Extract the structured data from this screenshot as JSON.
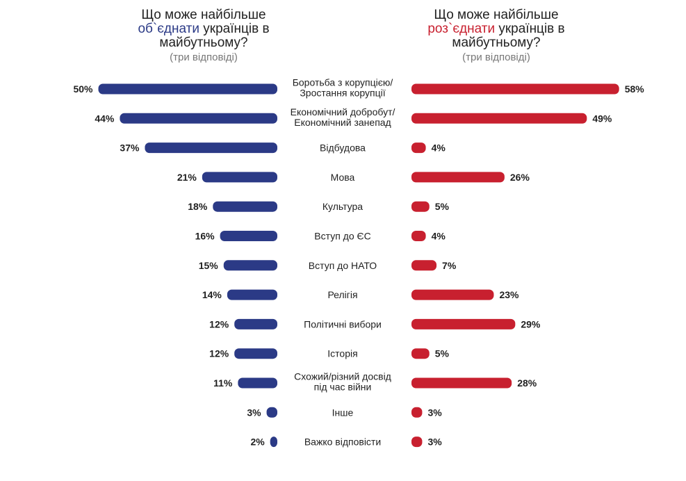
{
  "left_panel": {
    "title_pre": "Що може найбільше",
    "title_highlight": "об`єднати",
    "title_post": "українців в майбутньому?",
    "subtitle": "(три відповіді)"
  },
  "right_panel": {
    "title_pre": "Що може найбільше",
    "title_highlight": "роз`єднати",
    "title_post": "українців в майбутньому?",
    "subtitle": "(три відповіді)"
  },
  "colors": {
    "unite": "#2b3a86",
    "divide": "#c8202f"
  },
  "chart_data": {
    "type": "bar",
    "orientation": "horizontal-butterfly",
    "categories": [
      [
        "Боротьба з корупцією/",
        "Зростання корупції"
      ],
      [
        "Економічний добробут/",
        "Економічний занепад"
      ],
      [
        "Відбудова"
      ],
      [
        "Мова"
      ],
      [
        "Культура"
      ],
      [
        "Вступ до ЄС"
      ],
      [
        "Вступ до НАТО"
      ],
      [
        "Релігія"
      ],
      [
        "Політичні вибори"
      ],
      [
        "Історія"
      ],
      [
        "Схожий/різний досвід",
        "під час війни"
      ],
      [
        "Інше"
      ],
      [
        "Важко відповісти"
      ]
    ],
    "series": [
      {
        "values": [
          50,
          44,
          37,
          21,
          18,
          16,
          15,
          14,
          12,
          12,
          11,
          3,
          2
        ]
      },
      {
        "values": [
          58,
          49,
          4,
          26,
          5,
          4,
          7,
          23,
          29,
          5,
          28,
          3,
          3
        ]
      }
    ],
    "value_suffix": "%",
    "xlim": [
      0,
      60
    ]
  }
}
